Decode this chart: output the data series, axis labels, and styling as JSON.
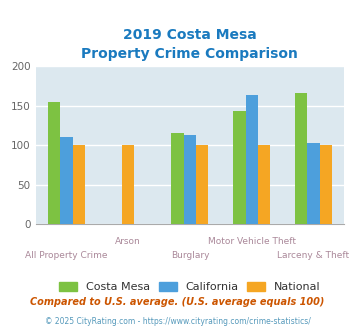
{
  "title_line1": "2019 Costa Mesa",
  "title_line2": "Property Crime Comparison",
  "title_color": "#1a7abf",
  "categories": [
    "All Property Crime",
    "Arson",
    "Burglary",
    "Motor Vehicle Theft",
    "Larceny & Theft"
  ],
  "costa_mesa": [
    155,
    null,
    116,
    143,
    166
  ],
  "california": [
    110,
    null,
    113,
    163,
    103
  ],
  "national": [
    100,
    100,
    100,
    100,
    100
  ],
  "color_costa_mesa": "#7dc242",
  "color_california": "#4d9fdc",
  "color_national": "#f5a623",
  "ylim": [
    0,
    200
  ],
  "yticks": [
    0,
    50,
    100,
    150,
    200
  ],
  "bg_color": "#dce8ef",
  "legend_labels": [
    "Costa Mesa",
    "California",
    "National"
  ],
  "footnote1": "Compared to U.S. average. (U.S. average equals 100)",
  "footnote2": "© 2025 CityRating.com - https://www.cityrating.com/crime-statistics/",
  "footnote1_color": "#cc5500",
  "footnote2_color": "#5599bb",
  "xlabel_color": "#aa8899"
}
